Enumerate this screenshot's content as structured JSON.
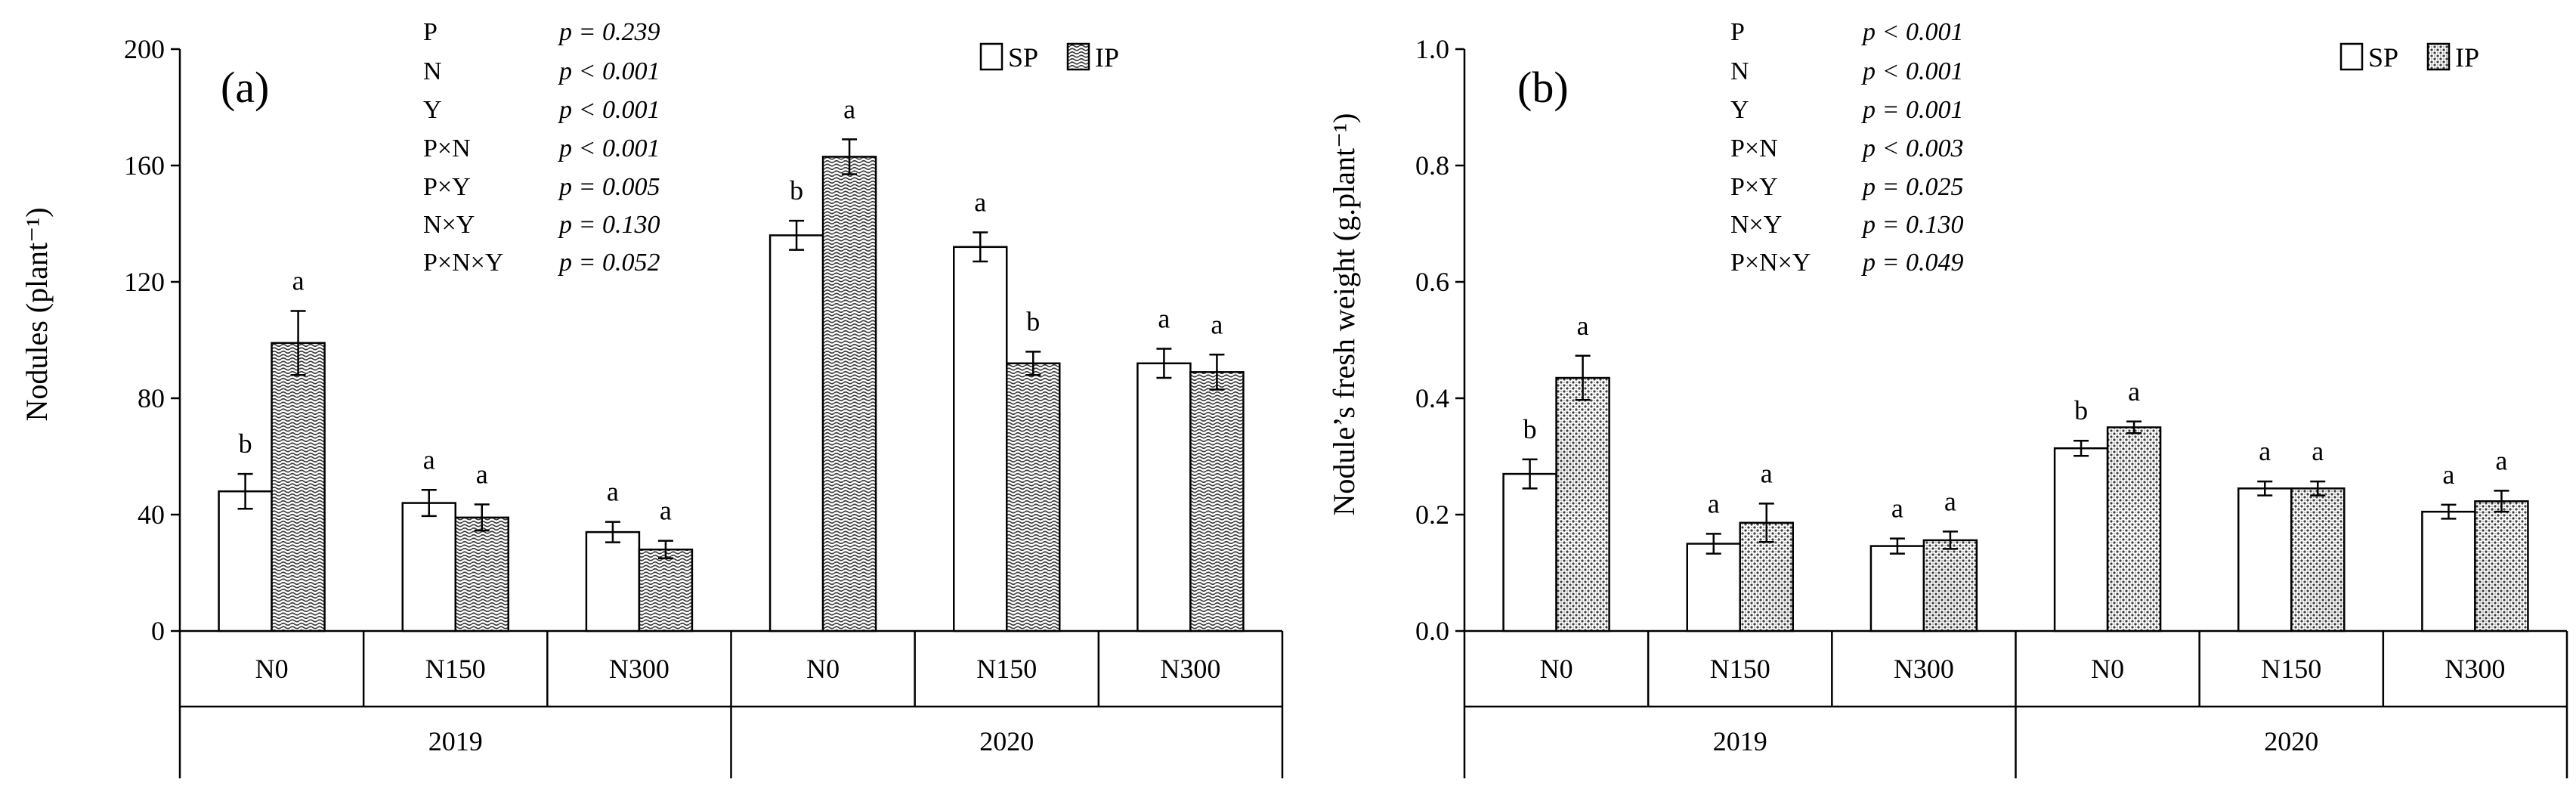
{
  "chart_data": [
    {
      "type": "bar",
      "panel_label": "(a)",
      "ylabel": "Nodules (plant⁻¹)",
      "ylim": [
        0,
        200
      ],
      "yticks": [
        0,
        40,
        80,
        120,
        160,
        200
      ],
      "ytick_labels": [
        "0",
        "40",
        "80",
        "120",
        "160",
        "200"
      ],
      "categories": [
        "N0",
        "N150",
        "N300",
        "N0",
        "N150",
        "N300"
      ],
      "groups": [
        {
          "label": "2019",
          "span": [
            0,
            2
          ]
        },
        {
          "label": "2020",
          "span": [
            3,
            5
          ]
        }
      ],
      "legend": [
        "SP",
        "IP"
      ],
      "series": [
        {
          "name": "SP",
          "pattern": "white",
          "values": [
            48,
            44,
            34,
            136,
            132,
            92
          ],
          "errors": [
            6,
            4.5,
            3.5,
            5,
            5,
            5
          ],
          "letters": [
            "b",
            "a",
            "a",
            "b",
            "a",
            "a"
          ]
        },
        {
          "name": "IP",
          "pattern": "wave",
          "values": [
            99,
            39,
            28,
            163,
            92,
            89
          ],
          "errors": [
            11,
            4.5,
            3,
            6,
            4,
            6
          ],
          "letters": [
            "a",
            "a",
            "a",
            "a",
            "b",
            "a"
          ]
        }
      ],
      "stats": [
        {
          "term": "P",
          "p": "p = 0.239"
        },
        {
          "term": "N",
          "p": "p < 0.001"
        },
        {
          "term": "Y",
          "p": "p < 0.001"
        },
        {
          "term": "P×N",
          "p": "p < 0.001"
        },
        {
          "term": "P×Y",
          "p": "p = 0.005"
        },
        {
          "term": "N×Y",
          "p": "p = 0.130"
        },
        {
          "term": "P×N×Y",
          "p": "p = 0.052"
        }
      ]
    },
    {
      "type": "bar",
      "panel_label": "(b)",
      "ylabel": "Nodule’s fresh weight (g.plant⁻¹)",
      "ylim": [
        0,
        1.0
      ],
      "yticks": [
        0,
        0.2,
        0.4,
        0.6,
        0.8,
        1.0
      ],
      "ytick_labels": [
        "0.0",
        "0.2",
        "0.4",
        "0.6",
        "0.8",
        "1.0"
      ],
      "categories": [
        "N0",
        "N150",
        "N300",
        "N0",
        "N150",
        "N300"
      ],
      "groups": [
        {
          "label": "2019",
          "span": [
            0,
            2
          ]
        },
        {
          "label": "2020",
          "span": [
            3,
            5
          ]
        }
      ],
      "legend": [
        "SP",
        "IP"
      ],
      "series": [
        {
          "name": "SP",
          "pattern": "white",
          "values": [
            0.27,
            0.15,
            0.146,
            0.314,
            0.245,
            0.205
          ],
          "errors": [
            0.025,
            0.017,
            0.013,
            0.013,
            0.012,
            0.012
          ],
          "letters": [
            "b",
            "a",
            "a",
            "b",
            "a",
            "a"
          ]
        },
        {
          "name": "IP",
          "pattern": "dots",
          "values": [
            0.435,
            0.186,
            0.156,
            0.35,
            0.245,
            0.223
          ],
          "errors": [
            0.038,
            0.033,
            0.015,
            0.01,
            0.012,
            0.018
          ],
          "letters": [
            "a",
            "a",
            "a",
            "a",
            "a",
            "a"
          ]
        }
      ],
      "stats": [
        {
          "term": "P",
          "p": "p < 0.001"
        },
        {
          "term": "N",
          "p": "p < 0.001"
        },
        {
          "term": "Y",
          "p": "p = 0.001"
        },
        {
          "term": "P×N",
          "p": "p < 0.003"
        },
        {
          "term": "P×Y",
          "p": "p = 0.025"
        },
        {
          "term": "N×Y",
          "p": "p = 0.130"
        },
        {
          "term": "P×N×Y",
          "p": "p = 0.049"
        }
      ]
    }
  ]
}
